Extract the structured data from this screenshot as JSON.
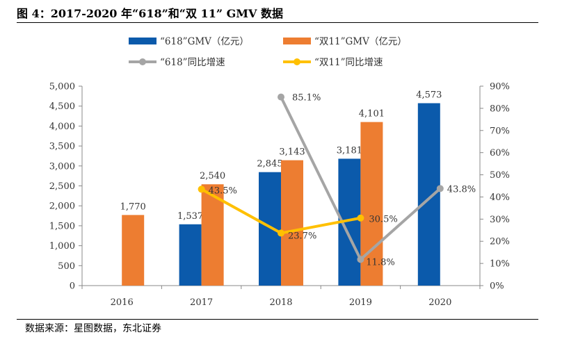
{
  "header": {
    "title": "图 4：2017-2020 年“618”和“双 11” GMV 数据"
  },
  "footer": {
    "source": "数据来源：星图数据，东北证券"
  },
  "colors": {
    "gmv618": "#0b5aab",
    "gmv1111": "#ed7d31",
    "growth618": "#a5a5a5",
    "growth1111": "#ffc000"
  },
  "chart_data": {
    "type": "bar",
    "categories": [
      "2016",
      "2017",
      "2018",
      "2019",
      "2020"
    ],
    "series": [
      {
        "name": "“618”GMV（亿元）",
        "type": "bar",
        "axis": "left",
        "values": [
          null,
          1537,
          2845,
          3181,
          4573
        ],
        "labels": [
          "",
          "1,537",
          "2,845",
          "3,181",
          "4,573"
        ]
      },
      {
        "name": "“双11”GMV（亿元）",
        "type": "bar",
        "axis": "left",
        "values": [
          1770,
          2540,
          3143,
          4101,
          null
        ],
        "labels": [
          "1,770",
          "2,540",
          "3,143",
          "4,101",
          ""
        ]
      },
      {
        "name": "“618”同比增速",
        "type": "line",
        "axis": "right",
        "values": [
          null,
          null,
          85.1,
          11.8,
          43.8
        ],
        "labels": [
          "",
          "",
          "85.1%",
          "11.8%",
          "43.8%"
        ]
      },
      {
        "name": "“双11”同比增速",
        "type": "line",
        "axis": "right",
        "values": [
          null,
          43.5,
          23.7,
          30.5,
          null
        ],
        "labels": [
          "",
          "43.5%",
          "23.7%",
          "30.5%",
          ""
        ]
      }
    ],
    "ylim": [
      0,
      5000
    ],
    "yticks": [
      "0",
      "500",
      "1,000",
      "1,500",
      "2,000",
      "2,500",
      "3,000",
      "3,500",
      "4,000",
      "4,500",
      "5,000"
    ],
    "y2lim": [
      0,
      90
    ],
    "y2ticks": [
      "0%",
      "10%",
      "20%",
      "30%",
      "40%",
      "50%",
      "60%",
      "70%",
      "80%",
      "90%"
    ],
    "grid": false,
    "legend": "top"
  }
}
